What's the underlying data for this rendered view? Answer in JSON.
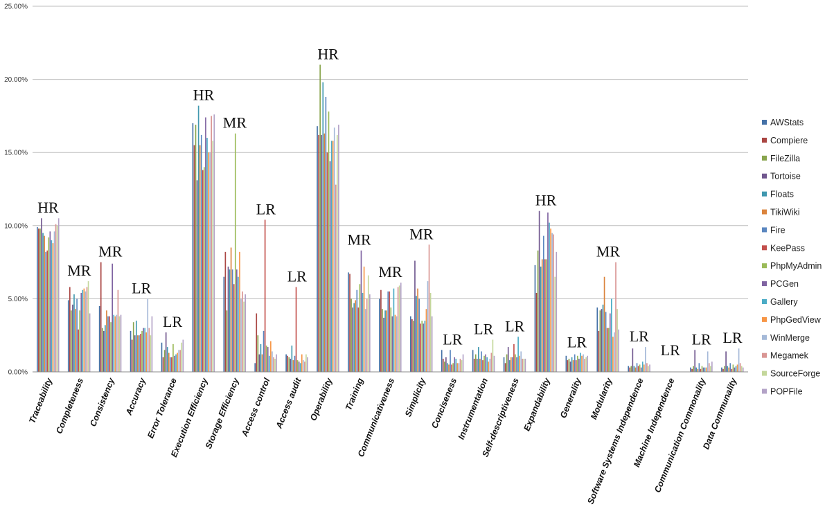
{
  "chart_data": {
    "type": "bar",
    "ylim": [
      0,
      25
    ],
    "yticks": [
      "0.00%",
      "5.00%",
      "10.00%",
      "15.00%",
      "20.00%",
      "25.00%"
    ],
    "ytick_values": [
      0,
      5,
      10,
      15,
      20,
      25
    ],
    "legend_position": "right",
    "grid": true,
    "categories": [
      "Traceability",
      "Completeness",
      "Consistency",
      "Accuracy",
      "Error Tolerance",
      "Execution Efficiency",
      "Storage Efficiency",
      "Access control",
      "Access audit",
      "Operability",
      "Training",
      "Communicativeness",
      "Simplicity",
      "Conciseness",
      "Instrumentation",
      "Self-descriptiveness",
      "Expandability",
      "Generality",
      "Modularity",
      "Software Systems Independence",
      "Machine Independence",
      "Communication Commonality",
      "Data Communality"
    ],
    "annotations": [
      "HR",
      "MR",
      "MR",
      "LR",
      "LR",
      "HR",
      "MR",
      "LR",
      "LR",
      "HR",
      "MR",
      "MR",
      "MR",
      "LR",
      "LR",
      "LR",
      "HR",
      "LR",
      "MR",
      "LR",
      "LR",
      "LR",
      "LR"
    ],
    "colors": [
      "#4572a7",
      "#aa4643",
      "#89a54e",
      "#71588f",
      "#4198af",
      "#db843d",
      "#5b87c0",
      "#c3504d",
      "#9bbb59",
      "#8064a2",
      "#4bacc6",
      "#f79646",
      "#a5b9d8",
      "#d99694",
      "#c4d79b",
      "#b3a2c7"
    ],
    "series": [
      {
        "name": "AWStats",
        "values": [
          9.9,
          4.9,
          4.5,
          2.8,
          2.0,
          17.0,
          6.5,
          0.6,
          1.2,
          16.8,
          6.8,
          5.0,
          3.8,
          1.5,
          1.5,
          1.0,
          7.3,
          1.1,
          4.4,
          0.4,
          0.0,
          0.3,
          0.3
        ]
      },
      {
        "name": "Compiere",
        "values": [
          9.8,
          5.8,
          7.5,
          2.2,
          1.0,
          15.5,
          8.2,
          4.0,
          1.1,
          16.2,
          6.7,
          5.6,
          3.6,
          0.9,
          0.9,
          0.6,
          5.4,
          0.8,
          2.8,
          0.3,
          0.0,
          0.2,
          0.2
        ]
      },
      {
        "name": "FileZilla",
        "values": [
          9.8,
          4.2,
          3.0,
          3.4,
          1.5,
          16.9,
          4.2,
          2.5,
          1.0,
          21.0,
          5.0,
          4.3,
          3.5,
          0.7,
          1.2,
          1.2,
          8.3,
          0.9,
          4.2,
          0.4,
          0.0,
          0.4,
          0.4
        ]
      },
      {
        "name": "Tortoise",
        "values": [
          10.5,
          4.6,
          2.8,
          2.5,
          2.7,
          13.1,
          7.2,
          1.2,
          0.9,
          16.2,
          4.4,
          3.7,
          7.6,
          1.0,
          0.9,
          1.7,
          11.0,
          0.7,
          4.3,
          1.6,
          0.0,
          1.5,
          1.4
        ]
      },
      {
        "name": "Floats",
        "values": [
          9.5,
          5.3,
          3.2,
          3.5,
          1.7,
          18.2,
          7.0,
          1.9,
          1.8,
          19.8,
          4.7,
          4.2,
          5.2,
          0.6,
          1.7,
          0.8,
          7.2,
          1.0,
          4.6,
          0.4,
          0.0,
          0.3,
          0.4
        ]
      },
      {
        "name": "TikiWiki",
        "values": [
          9.3,
          4.3,
          4.2,
          2.5,
          1.3,
          15.5,
          8.5,
          1.2,
          0.8,
          16.3,
          4.9,
          4.2,
          5.7,
          0.5,
          0.9,
          1.0,
          7.7,
          0.8,
          6.5,
          0.3,
          0.0,
          0.2,
          0.3
        ]
      },
      {
        "name": "Fire",
        "values": [
          8.2,
          5.0,
          3.8,
          2.5,
          1.0,
          16.2,
          7.0,
          2.8,
          1.1,
          18.8,
          5.6,
          5.5,
          5.0,
          1.5,
          1.4,
          1.0,
          9.3,
          1.2,
          4.1,
          0.6,
          0.0,
          0.6,
          0.6
        ]
      },
      {
        "name": "KeePass",
        "values": [
          8.3,
          2.9,
          3.8,
          2.6,
          1.0,
          13.8,
          6.0,
          10.4,
          5.8,
          15.0,
          4.4,
          5.5,
          3.3,
          0.5,
          0.8,
          1.9,
          7.7,
          0.8,
          3.0,
          0.4,
          0.0,
          0.2,
          0.2
        ]
      },
      {
        "name": "PhpMyAdmin",
        "values": [
          9.2,
          4.2,
          3.4,
          2.8,
          1.9,
          14.0,
          16.3,
          1.8,
          0.8,
          17.8,
          6.0,
          4.4,
          3.5,
          0.6,
          1.1,
          1.2,
          7.7,
          1.1,
          3.0,
          0.5,
          0.0,
          0.4,
          0.5
        ]
      },
      {
        "name": "PCGen",
        "values": [
          9.6,
          5.4,
          7.4,
          3.0,
          1.1,
          17.4,
          7.0,
          1.7,
          0.7,
          14.4,
          8.3,
          3.8,
          3.3,
          1.0,
          1.2,
          1.0,
          10.9,
          0.9,
          4.0,
          0.3,
          0.0,
          0.3,
          0.3
        ]
      },
      {
        "name": "Gallery",
        "values": [
          9.0,
          5.6,
          3.9,
          3.0,
          1.2,
          16.0,
          6.5,
          1.1,
          0.6,
          15.8,
          5.4,
          5.7,
          3.5,
          0.9,
          1.0,
          2.4,
          10.2,
          1.3,
          5.0,
          0.7,
          0.0,
          0.3,
          0.4
        ]
      },
      {
        "name": "PhpGedView",
        "values": [
          8.8,
          5.7,
          3.8,
          2.7,
          1.3,
          15.0,
          8.2,
          2.1,
          1.2,
          15.8,
          7.2,
          3.9,
          4.3,
          0.6,
          0.7,
          1.1,
          9.8,
          1.1,
          2.4,
          0.5,
          0.0,
          0.3,
          0.5
        ]
      },
      {
        "name": "WinMerge",
        "values": [
          9.6,
          5.5,
          3.9,
          5.0,
          1.5,
          15.0,
          5.0,
          1.4,
          0.8,
          16.7,
          4.3,
          3.8,
          6.2,
          0.6,
          0.9,
          1.4,
          9.5,
          1.2,
          2.7,
          1.7,
          0.0,
          1.4,
          1.6
        ]
      },
      {
        "name": "Megamek",
        "values": [
          10.1,
          5.8,
          5.6,
          3.0,
          1.5,
          17.5,
          5.5,
          1.0,
          0.7,
          12.8,
          5.0,
          5.8,
          8.7,
          0.9,
          1.3,
          0.9,
          9.4,
          0.9,
          7.5,
          0.6,
          0.0,
          0.6,
          0.6
        ]
      },
      {
        "name": "SourceForge",
        "values": [
          10.0,
          6.2,
          3.8,
          2.5,
          2.0,
          15.8,
          4.8,
          0.9,
          1.2,
          16.2,
          6.6,
          5.9,
          5.4,
          0.8,
          2.2,
          0.9,
          6.5,
          1.0,
          4.3,
          0.4,
          0.0,
          0.4,
          0.4
        ]
      },
      {
        "name": "POPFile",
        "values": [
          10.5,
          4.0,
          3.9,
          3.8,
          2.2,
          17.6,
          5.3,
          1.2,
          1.0,
          16.9,
          5.3,
          6.1,
          3.8,
          1.2,
          1.1,
          0.9,
          8.2,
          1.1,
          2.9,
          0.5,
          0.0,
          0.7,
          0.3
        ]
      }
    ]
  }
}
